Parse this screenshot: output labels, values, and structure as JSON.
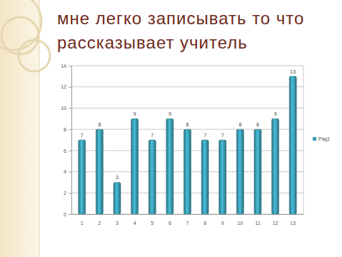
{
  "chart_data": {
    "type": "bar",
    "title": "мне легко записывать то что рассказывает учитель",
    "categories": [
      "1",
      "2",
      "3",
      "4",
      "5",
      "6",
      "7",
      "8",
      "9",
      "10",
      "11",
      "12",
      "13"
    ],
    "series": [
      {
        "name": "Ряд1",
        "color": "#3a9ab0",
        "values": [
          7,
          8,
          3,
          9,
          7,
          9,
          8,
          7,
          7,
          8,
          8,
          9,
          13
        ]
      }
    ],
    "ylim": [
      0,
      14
    ],
    "yticks": [
      0,
      2,
      4,
      6,
      8,
      10,
      12,
      14
    ],
    "grid": true,
    "data_labels": true,
    "legend": "right"
  }
}
